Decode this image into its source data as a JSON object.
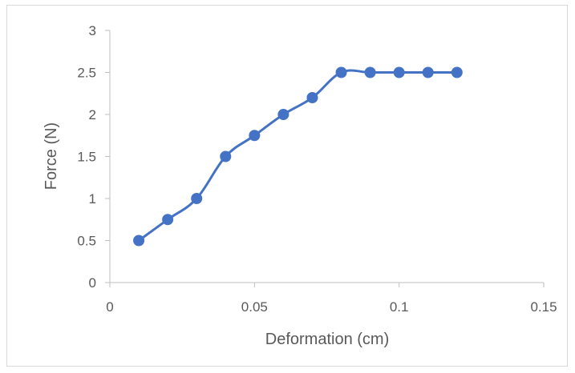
{
  "chart_data": {
    "type": "line",
    "title": "",
    "xlabel": "Deformation (cm)",
    "ylabel": "Force (N)",
    "xlim": [
      0,
      0.15
    ],
    "ylim": [
      0,
      3
    ],
    "x_ticks": [
      0,
      0.05,
      0.1,
      0.15
    ],
    "x_tick_labels": [
      "0",
      "0.05",
      "0.1",
      "0.15"
    ],
    "y_ticks": [
      0,
      0.5,
      1,
      1.5,
      2,
      2.5,
      3
    ],
    "y_tick_labels": [
      "0",
      "0.5",
      "1",
      "1.5",
      "2",
      "2.5",
      "3"
    ],
    "grid": false,
    "legend": "none",
    "smoothed": true,
    "markers": "circle",
    "series": [
      {
        "color": "#4472c4",
        "x": [
          0.01,
          0.02,
          0.03,
          0.04,
          0.05,
          0.06,
          0.07,
          0.08,
          0.09,
          0.1,
          0.11,
          0.12
        ],
        "y": [
          0.5,
          0.75,
          1.0,
          1.5,
          1.75,
          2.0,
          2.2,
          2.5,
          2.5,
          2.5,
          2.5,
          2.5
        ]
      }
    ]
  }
}
